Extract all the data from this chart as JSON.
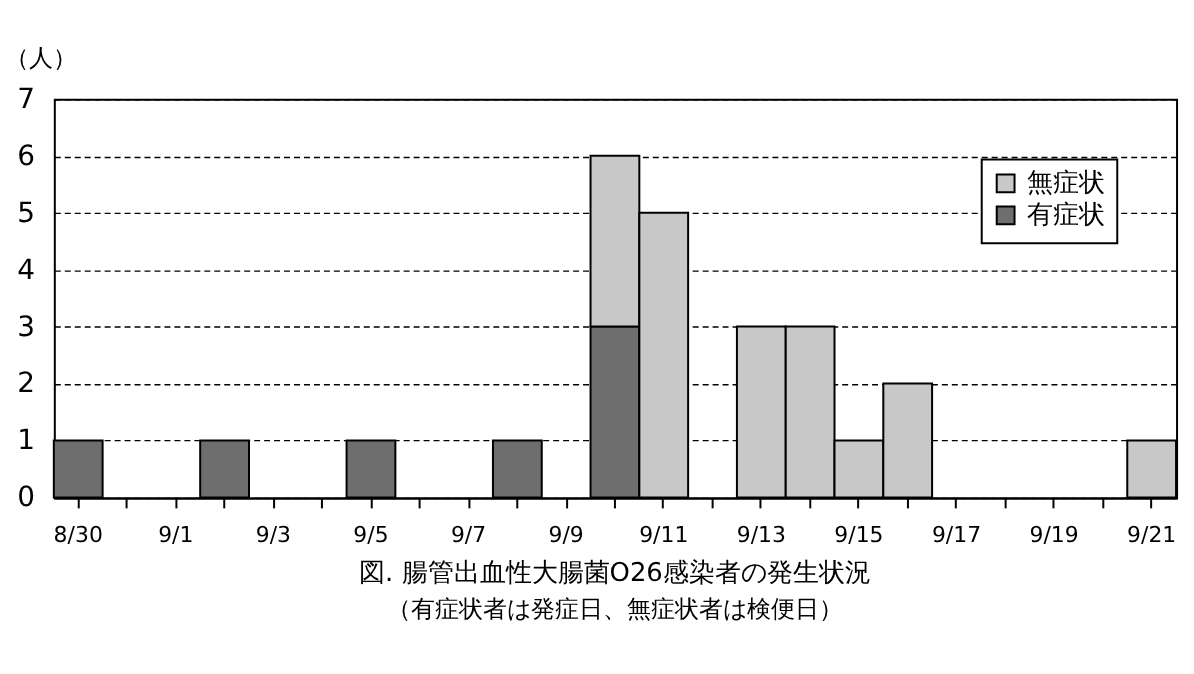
{
  "chart_data": {
    "type": "bar",
    "stacked": true,
    "title": "図. 腸管出血性大腸菌O26感染者の発生状況",
    "subtitle": "（有症状者は発症日、無症状者は検便日）",
    "ylabel": "（人）",
    "categories": [
      "8/30",
      null,
      "9/1",
      null,
      "9/3",
      null,
      "9/5",
      null,
      "9/7",
      null,
      "9/9",
      null,
      "9/11",
      null,
      "9/13",
      null,
      "9/15",
      null,
      "9/17",
      null,
      "9/19",
      null,
      "9/21"
    ],
    "series": [
      {
        "name": "有症状",
        "color": "#6e6e6e",
        "values": [
          1,
          null,
          null,
          1,
          null,
          null,
          1,
          null,
          null,
          1,
          null,
          3,
          null,
          null,
          null,
          null,
          null,
          null,
          null,
          null,
          null,
          null,
          null
        ]
      },
      {
        "name": "無症状",
        "color": "#c8c8c8",
        "values": [
          null,
          null,
          null,
          null,
          null,
          null,
          null,
          null,
          null,
          null,
          null,
          3,
          5,
          null,
          3,
          3,
          1,
          2,
          null,
          null,
          null,
          null,
          1
        ]
      }
    ],
    "ylim": [
      0,
      7
    ],
    "yticks": [
      0,
      1,
      2,
      3,
      4,
      5,
      6,
      7
    ],
    "grid": "y",
    "legend": "top right"
  }
}
